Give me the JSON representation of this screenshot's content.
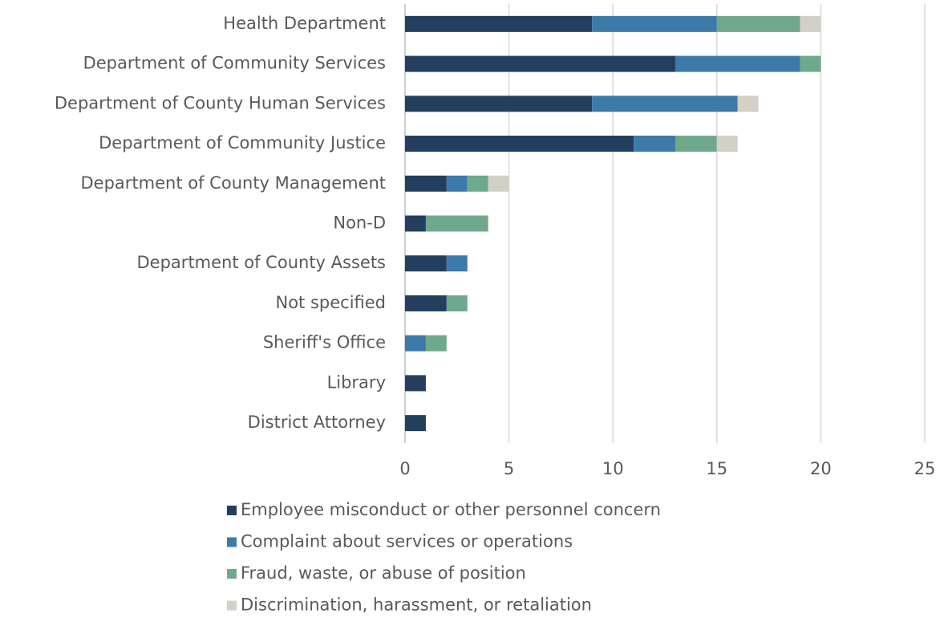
{
  "chart_data": {
    "type": "stacked_barh",
    "categories": [
      "Health Department",
      "Department of Community Services",
      "Department of County Human Services",
      "Department of Community Justice",
      "Department of County Management",
      "Non-D",
      "Department of County Assets",
      "Not specified",
      "Sheriff's Office",
      "Library",
      "District Attorney"
    ],
    "series": [
      {
        "name": "Employee misconduct or other personnel concern",
        "color": "#243f5e",
        "values": [
          9,
          13,
          9,
          11,
          2,
          1,
          2,
          2,
          0,
          1,
          1
        ]
      },
      {
        "name": "Complaint about services or operations",
        "color": "#3c7aa9",
        "values": [
          6,
          6,
          7,
          2,
          1,
          0,
          1,
          0,
          1,
          0,
          0
        ]
      },
      {
        "name": "Fraud, waste, or abuse of position",
        "color": "#6fa98b",
        "values": [
          4,
          1,
          0,
          2,
          1,
          3,
          0,
          1,
          1,
          0,
          0
        ]
      },
      {
        "name": "Discrimination, harassment, or retaliation",
        "color": "#d3d0c6",
        "values": [
          1,
          0,
          1,
          1,
          1,
          0,
          0,
          0,
          0,
          0,
          0
        ]
      }
    ],
    "xlim": [
      0,
      25
    ],
    "xticks": [
      0,
      5,
      10,
      15,
      20,
      25
    ],
    "grid": true,
    "legend": "bottom"
  }
}
